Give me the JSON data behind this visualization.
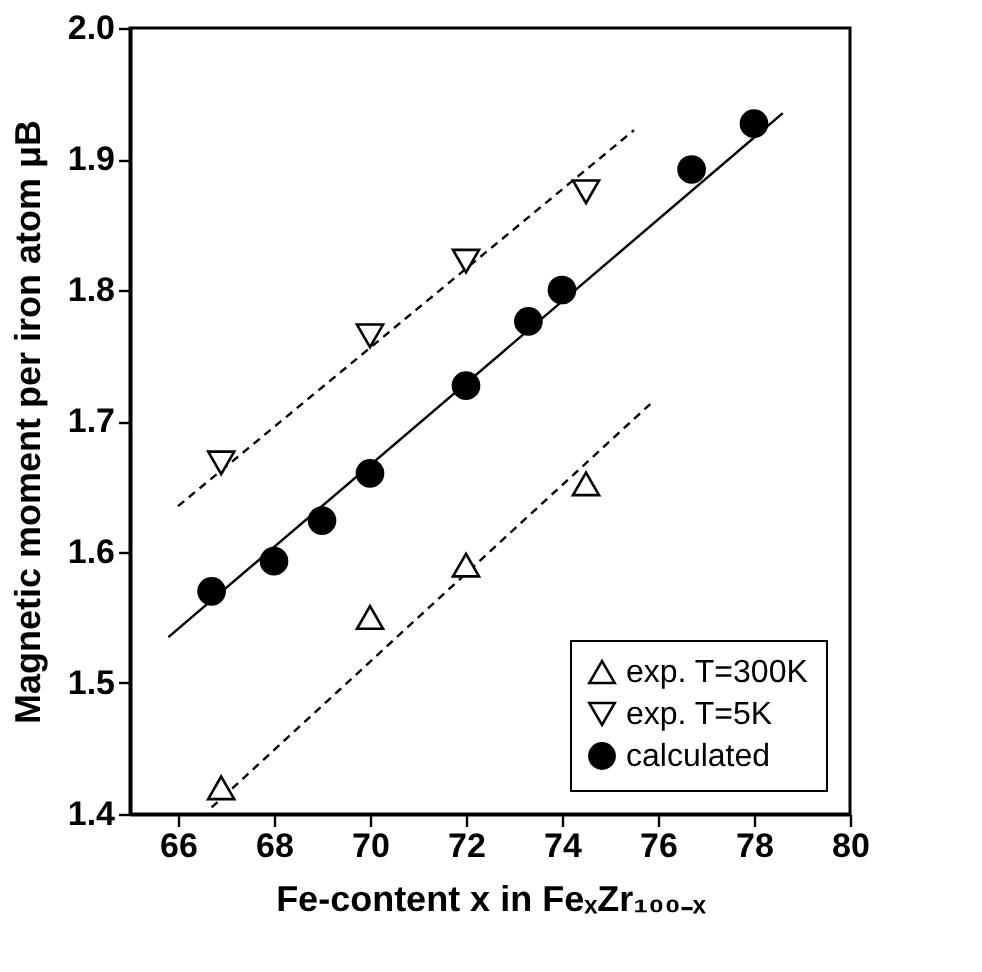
{
  "chart_data": {
    "type": "scatter",
    "xlabel": "Fe-content x in FeₓZr₁₀₀₋ₓ",
    "ylabel": "Magnetic moment per iron atom μB",
    "xlim": [
      65,
      80
    ],
    "xticks": [
      66,
      68,
      70,
      72,
      74,
      76,
      78,
      80
    ],
    "ylim": [
      1.4,
      2.0
    ],
    "yticks": [
      1.4,
      1.5,
      1.6,
      1.7,
      1.8,
      1.9,
      {
        "value": 2,
        "label": "2.0"
      }
    ],
    "grid": false,
    "legend": "bottom right",
    "series": [
      {
        "name": "exp. T=300K",
        "color": "#000000",
        "marker": "triangle",
        "x": [
          66.9,
          70,
          72,
          74.5
        ],
        "values": [
          1.42,
          1.55,
          1.59,
          1.652
        ]
      },
      {
        "name": "exp. T=5K",
        "color": "#000000",
        "marker": "triangle-down",
        "x": [
          66.9,
          70,
          72,
          74.5
        ],
        "values": [
          1.668,
          1.765,
          1.822,
          1.875
        ]
      },
      {
        "name": "calculated",
        "color": "#000000",
        "marker": "circle",
        "x": [
          66.7,
          68,
          69,
          70,
          72,
          73.3,
          74,
          76.7,
          78
        ],
        "values": [
          1.57,
          1.593,
          1.624,
          1.66,
          1.727,
          1.776,
          1.8,
          1.892,
          1.927
        ]
      },
      {
        "type": "line",
        "color": "#000000",
        "marker": "none",
        "line_style": "dashed",
        "x": [
          66.7,
          75.9
        ],
        "values": [
          1.405,
          1.715
        ]
      },
      {
        "type": "line",
        "color": "#000000",
        "marker": "none",
        "line_style": "dashed",
        "x": [
          66,
          75.5
        ],
        "values": [
          1.635,
          1.922
        ]
      },
      {
        "type": "line",
        "color": "#000000",
        "marker": "none",
        "line_style": "solid",
        "x": [
          65.8,
          78.6
        ],
        "values": [
          1.535,
          1.935
        ]
      }
    ]
  }
}
